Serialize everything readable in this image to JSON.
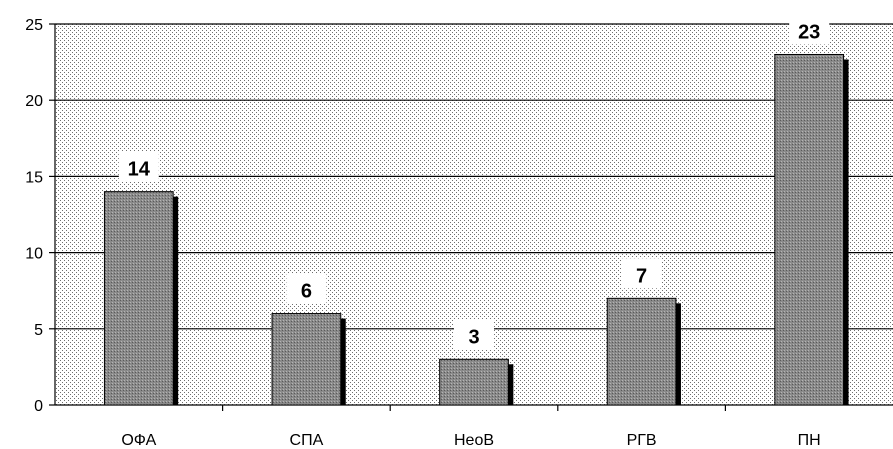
{
  "chart_data": {
    "type": "bar",
    "categories": [
      "ОФА",
      "СПА",
      "НеоВ",
      "РГВ",
      "ПН"
    ],
    "values": [
      14,
      6,
      3,
      7,
      23
    ],
    "title": "",
    "xlabel": "",
    "ylabel": "",
    "ylim": [
      0,
      25
    ],
    "yticks": [
      0,
      5,
      10,
      15,
      20,
      25
    ],
    "grid": true,
    "legend": "none",
    "bar_color": "#8c8c8c",
    "shadow_color": "#000000",
    "plot_background": "dotted"
  }
}
